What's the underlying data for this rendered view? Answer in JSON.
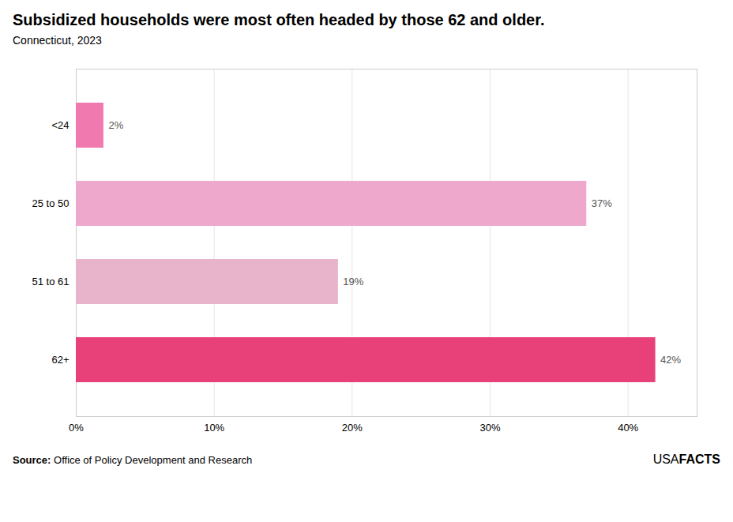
{
  "chart_data": {
    "type": "bar",
    "orientation": "horizontal",
    "title": "Subsidized households were most often headed by those 62 and older.",
    "subtitle": "Connecticut, 2023",
    "categories": [
      "62+",
      "51 to 61",
      "25 to 50",
      "<24"
    ],
    "values": [
      42,
      19,
      37,
      2
    ],
    "value_labels": [
      "42%",
      "19%",
      "37%",
      "2%"
    ],
    "data_labels": true,
    "colors": [
      "#e8417a",
      "#e8b4cc",
      "#eda8cc",
      "#f07ab0"
    ],
    "xlim": [
      0,
      45
    ],
    "xticks": [
      {
        "value": 0,
        "label": "0%"
      },
      {
        "value": 10,
        "label": "10%"
      },
      {
        "value": 20,
        "label": "20%"
      },
      {
        "value": 30,
        "label": "30%"
      },
      {
        "value": 40,
        "label": "40%"
      }
    ],
    "grid": true,
    "annotations": [
      "Source:",
      "Office of Policy Development and Research",
      "USA",
      "FACTS"
    ]
  }
}
